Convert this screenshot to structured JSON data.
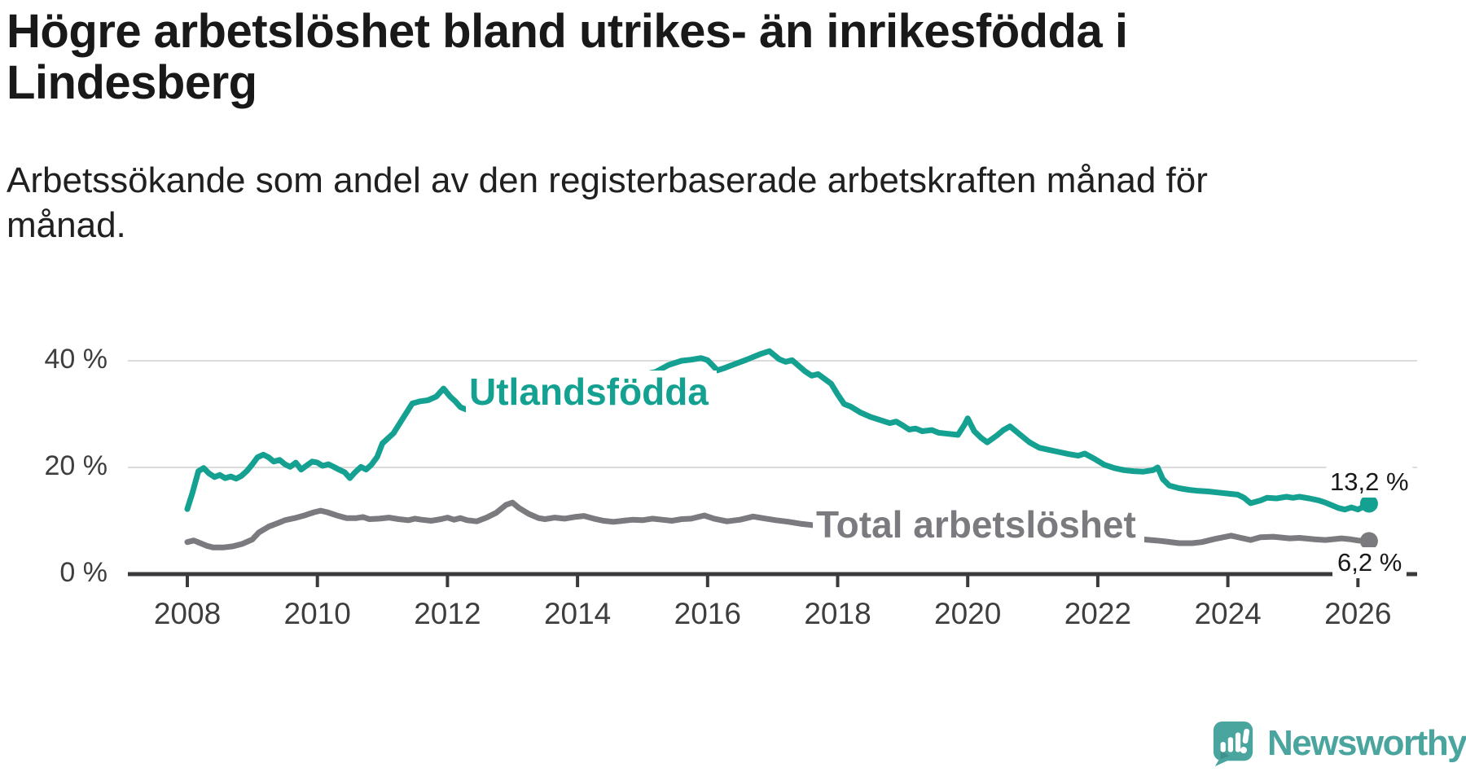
{
  "chart_data": {
    "type": "line",
    "title": "Högre arbetslöshet bland utrikes- än inrikesfödda i Lindesberg",
    "subtitle": "Arbetssökande som andel av den registerbaserade arbetskraften månad för månad.",
    "unit": "%",
    "grid": "horizontal-only",
    "x_axis": {
      "range": [
        2007.1,
        2026.9
      ],
      "ticks": [
        {
          "value": 2008,
          "label": "2008"
        },
        {
          "value": 2010,
          "label": "2010"
        },
        {
          "value": 2012,
          "label": "2012"
        },
        {
          "value": 2014,
          "label": "2014"
        },
        {
          "value": 2016,
          "label": "2016"
        },
        {
          "value": 2018,
          "label": "2018"
        },
        {
          "value": 2020,
          "label": "2020"
        },
        {
          "value": 2022,
          "label": "2022"
        },
        {
          "value": 2024,
          "label": "2024"
        },
        {
          "value": 2026,
          "label": "2026"
        }
      ]
    },
    "y_axis": {
      "range": [
        0,
        45
      ],
      "gridlines": [
        20,
        40
      ],
      "ticks": [
        {
          "value": 0,
          "label": "0 %"
        },
        {
          "value": 20,
          "label": "20 %"
        },
        {
          "value": 40,
          "label": "40 %"
        }
      ]
    },
    "series": [
      {
        "name": "Utlandsfödda",
        "color": "#15a191",
        "end_label": "13,2 %",
        "end_value": 13.2,
        "points": [
          [
            2008.0,
            12.2
          ],
          [
            2008.08,
            15.3
          ],
          [
            2008.17,
            19.3
          ],
          [
            2008.25,
            19.9
          ],
          [
            2008.33,
            18.9
          ],
          [
            2008.42,
            18.2
          ],
          [
            2008.5,
            18.6
          ],
          [
            2008.58,
            18.0
          ],
          [
            2008.67,
            18.3
          ],
          [
            2008.75,
            17.9
          ],
          [
            2008.83,
            18.4
          ],
          [
            2008.92,
            19.4
          ],
          [
            2009.0,
            20.6
          ],
          [
            2009.08,
            21.9
          ],
          [
            2009.17,
            22.4
          ],
          [
            2009.25,
            21.9
          ],
          [
            2009.33,
            21.1
          ],
          [
            2009.42,
            21.4
          ],
          [
            2009.5,
            20.6
          ],
          [
            2009.58,
            20.1
          ],
          [
            2009.67,
            20.9
          ],
          [
            2009.75,
            19.6
          ],
          [
            2009.83,
            20.3
          ],
          [
            2009.92,
            21.1
          ],
          [
            2010.0,
            20.9
          ],
          [
            2010.08,
            20.3
          ],
          [
            2010.17,
            20.6
          ],
          [
            2010.25,
            20.1
          ],
          [
            2010.33,
            19.6
          ],
          [
            2010.42,
            19.1
          ],
          [
            2010.5,
            18.0
          ],
          [
            2010.58,
            19.1
          ],
          [
            2010.67,
            20.1
          ],
          [
            2010.75,
            19.6
          ],
          [
            2010.83,
            20.5
          ],
          [
            2010.92,
            22.0
          ],
          [
            2011.0,
            24.5
          ],
          [
            2011.17,
            26.4
          ],
          [
            2011.33,
            29.5
          ],
          [
            2011.46,
            32.0
          ],
          [
            2011.58,
            32.4
          ],
          [
            2011.7,
            32.6
          ],
          [
            2011.83,
            33.3
          ],
          [
            2011.94,
            34.8
          ],
          [
            2012.04,
            33.3
          ],
          [
            2012.12,
            32.4
          ],
          [
            2012.2,
            31.3
          ],
          [
            2012.3,
            30.8
          ],
          [
            2012.6,
            32.5
          ],
          [
            2012.9,
            35.8
          ],
          [
            2013.2,
            36.3
          ],
          [
            2013.5,
            35.8
          ],
          [
            2013.9,
            36.3
          ],
          [
            2014.3,
            36.6
          ],
          [
            2014.7,
            37.0
          ],
          [
            2015.0,
            37.4
          ],
          [
            2015.2,
            37.9
          ],
          [
            2015.4,
            39.2
          ],
          [
            2015.6,
            40.0
          ],
          [
            2015.75,
            40.2
          ],
          [
            2015.9,
            40.5
          ],
          [
            2016.0,
            40.1
          ],
          [
            2016.15,
            38.2
          ],
          [
            2016.25,
            38.6
          ],
          [
            2016.4,
            39.3
          ],
          [
            2016.6,
            40.2
          ],
          [
            2016.8,
            41.2
          ],
          [
            2016.95,
            41.8
          ],
          [
            2017.1,
            40.3
          ],
          [
            2017.2,
            39.8
          ],
          [
            2017.3,
            40.1
          ],
          [
            2017.5,
            38.0
          ],
          [
            2017.6,
            37.2
          ],
          [
            2017.7,
            37.5
          ],
          [
            2017.9,
            35.7
          ],
          [
            2018.0,
            33.7
          ],
          [
            2018.1,
            31.9
          ],
          [
            2018.2,
            31.4
          ],
          [
            2018.35,
            30.3
          ],
          [
            2018.5,
            29.5
          ],
          [
            2018.65,
            28.9
          ],
          [
            2018.8,
            28.3
          ],
          [
            2018.9,
            28.6
          ],
          [
            2019.0,
            27.9
          ],
          [
            2019.1,
            27.1
          ],
          [
            2019.2,
            27.3
          ],
          [
            2019.3,
            26.8
          ],
          [
            2019.45,
            27.0
          ],
          [
            2019.55,
            26.5
          ],
          [
            2019.7,
            26.3
          ],
          [
            2019.85,
            26.1
          ],
          [
            2019.95,
            28.0
          ],
          [
            2020.0,
            29.2
          ],
          [
            2020.1,
            26.8
          ],
          [
            2020.2,
            25.6
          ],
          [
            2020.3,
            24.7
          ],
          [
            2020.45,
            26.0
          ],
          [
            2020.55,
            27.0
          ],
          [
            2020.65,
            27.7
          ],
          [
            2020.8,
            26.2
          ],
          [
            2020.95,
            24.7
          ],
          [
            2021.1,
            23.7
          ],
          [
            2021.25,
            23.3
          ],
          [
            2021.4,
            22.9
          ],
          [
            2021.55,
            22.5
          ],
          [
            2021.7,
            22.2
          ],
          [
            2021.8,
            22.6
          ],
          [
            2021.95,
            21.6
          ],
          [
            2022.1,
            20.5
          ],
          [
            2022.25,
            19.9
          ],
          [
            2022.4,
            19.5
          ],
          [
            2022.55,
            19.3
          ],
          [
            2022.7,
            19.2
          ],
          [
            2022.85,
            19.5
          ],
          [
            2022.92,
            20.0
          ],
          [
            2023.0,
            17.8
          ],
          [
            2023.1,
            16.6
          ],
          [
            2023.25,
            16.1
          ],
          [
            2023.4,
            15.8
          ],
          [
            2023.55,
            15.6
          ],
          [
            2023.7,
            15.5
          ],
          [
            2023.85,
            15.3
          ],
          [
            2024.0,
            15.1
          ],
          [
            2024.15,
            14.9
          ],
          [
            2024.25,
            14.3
          ],
          [
            2024.35,
            13.3
          ],
          [
            2024.5,
            13.8
          ],
          [
            2024.6,
            14.3
          ],
          [
            2024.75,
            14.2
          ],
          [
            2024.9,
            14.5
          ],
          [
            2025.0,
            14.3
          ],
          [
            2025.1,
            14.5
          ],
          [
            2025.25,
            14.2
          ],
          [
            2025.4,
            13.8
          ],
          [
            2025.5,
            13.4
          ],
          [
            2025.6,
            12.9
          ],
          [
            2025.7,
            12.4
          ],
          [
            2025.8,
            12.1
          ],
          [
            2025.9,
            12.5
          ],
          [
            2026.0,
            12.1
          ],
          [
            2026.17,
            13.2
          ]
        ]
      },
      {
        "name": "Total arbetslöshet",
        "color": "#7b7b7f",
        "end_label": "6,2 %",
        "end_value": 6.2,
        "points": [
          [
            2008.0,
            6.0
          ],
          [
            2008.1,
            6.3
          ],
          [
            2008.2,
            5.8
          ],
          [
            2008.3,
            5.3
          ],
          [
            2008.4,
            5.0
          ],
          [
            2008.55,
            5.0
          ],
          [
            2008.7,
            5.2
          ],
          [
            2008.85,
            5.7
          ],
          [
            2009.0,
            6.5
          ],
          [
            2009.1,
            7.8
          ],
          [
            2009.25,
            8.9
          ],
          [
            2009.4,
            9.6
          ],
          [
            2009.5,
            10.1
          ],
          [
            2009.65,
            10.5
          ],
          [
            2009.8,
            11.0
          ],
          [
            2009.95,
            11.6
          ],
          [
            2010.05,
            11.9
          ],
          [
            2010.15,
            11.6
          ],
          [
            2010.3,
            11.0
          ],
          [
            2010.45,
            10.5
          ],
          [
            2010.6,
            10.5
          ],
          [
            2010.7,
            10.7
          ],
          [
            2010.8,
            10.3
          ],
          [
            2010.95,
            10.4
          ],
          [
            2011.1,
            10.6
          ],
          [
            2011.25,
            10.3
          ],
          [
            2011.4,
            10.1
          ],
          [
            2011.5,
            10.4
          ],
          [
            2011.6,
            10.2
          ],
          [
            2011.75,
            10.0
          ],
          [
            2011.9,
            10.3
          ],
          [
            2012.0,
            10.6
          ],
          [
            2012.1,
            10.2
          ],
          [
            2012.2,
            10.5
          ],
          [
            2012.3,
            10.1
          ],
          [
            2012.45,
            9.9
          ],
          [
            2012.6,
            10.6
          ],
          [
            2012.75,
            11.5
          ],
          [
            2012.9,
            13.0
          ],
          [
            2013.0,
            13.4
          ],
          [
            2013.1,
            12.4
          ],
          [
            2013.25,
            11.3
          ],
          [
            2013.4,
            10.5
          ],
          [
            2013.5,
            10.3
          ],
          [
            2013.65,
            10.6
          ],
          [
            2013.8,
            10.4
          ],
          [
            2013.95,
            10.7
          ],
          [
            2014.1,
            10.9
          ],
          [
            2014.25,
            10.4
          ],
          [
            2014.4,
            10.0
          ],
          [
            2014.55,
            9.8
          ],
          [
            2014.7,
            10.0
          ],
          [
            2014.85,
            10.2
          ],
          [
            2015.0,
            10.1
          ],
          [
            2015.15,
            10.4
          ],
          [
            2015.3,
            10.2
          ],
          [
            2015.45,
            10.0
          ],
          [
            2015.6,
            10.3
          ],
          [
            2015.75,
            10.4
          ],
          [
            2015.95,
            11.0
          ],
          [
            2016.1,
            10.4
          ],
          [
            2016.3,
            9.9
          ],
          [
            2016.5,
            10.2
          ],
          [
            2016.7,
            10.8
          ],
          [
            2016.9,
            10.4
          ],
          [
            2017.05,
            10.1
          ],
          [
            2017.25,
            9.8
          ],
          [
            2017.45,
            9.4
          ],
          [
            2017.6,
            9.2
          ],
          [
            2018.0,
            8.8
          ],
          [
            2018.5,
            8.2
          ],
          [
            2019.0,
            7.8
          ],
          [
            2019.5,
            7.5
          ],
          [
            2019.95,
            8.1
          ],
          [
            2020.2,
            8.7
          ],
          [
            2020.5,
            8.9
          ],
          [
            2020.8,
            8.5
          ],
          [
            2021.0,
            8.1
          ],
          [
            2021.5,
            7.5
          ],
          [
            2022.0,
            7.0
          ],
          [
            2022.54,
            6.6
          ],
          [
            2022.7,
            6.5
          ],
          [
            2022.9,
            6.3
          ],
          [
            2023.05,
            6.1
          ],
          [
            2023.25,
            5.8
          ],
          [
            2023.45,
            5.8
          ],
          [
            2023.6,
            6.0
          ],
          [
            2023.8,
            6.6
          ],
          [
            2024.05,
            7.2
          ],
          [
            2024.2,
            6.8
          ],
          [
            2024.35,
            6.4
          ],
          [
            2024.5,
            6.9
          ],
          [
            2024.7,
            7.0
          ],
          [
            2024.95,
            6.7
          ],
          [
            2025.1,
            6.8
          ],
          [
            2025.35,
            6.5
          ],
          [
            2025.5,
            6.4
          ],
          [
            2025.75,
            6.7
          ],
          [
            2025.9,
            6.5
          ],
          [
            2026.0,
            6.3
          ],
          [
            2026.17,
            6.2
          ]
        ]
      }
    ]
  },
  "branding": {
    "logo_text": "Newsworthy",
    "logo_icon": "newsworthy-chart-bubble-icon",
    "logo_color": "#4aa59f"
  },
  "colors": {
    "axis": "#3a3a3c",
    "gridline": "#dbdbdb",
    "tick_label": "#3e3e40",
    "text": "#191919",
    "background": "#ffffff"
  }
}
